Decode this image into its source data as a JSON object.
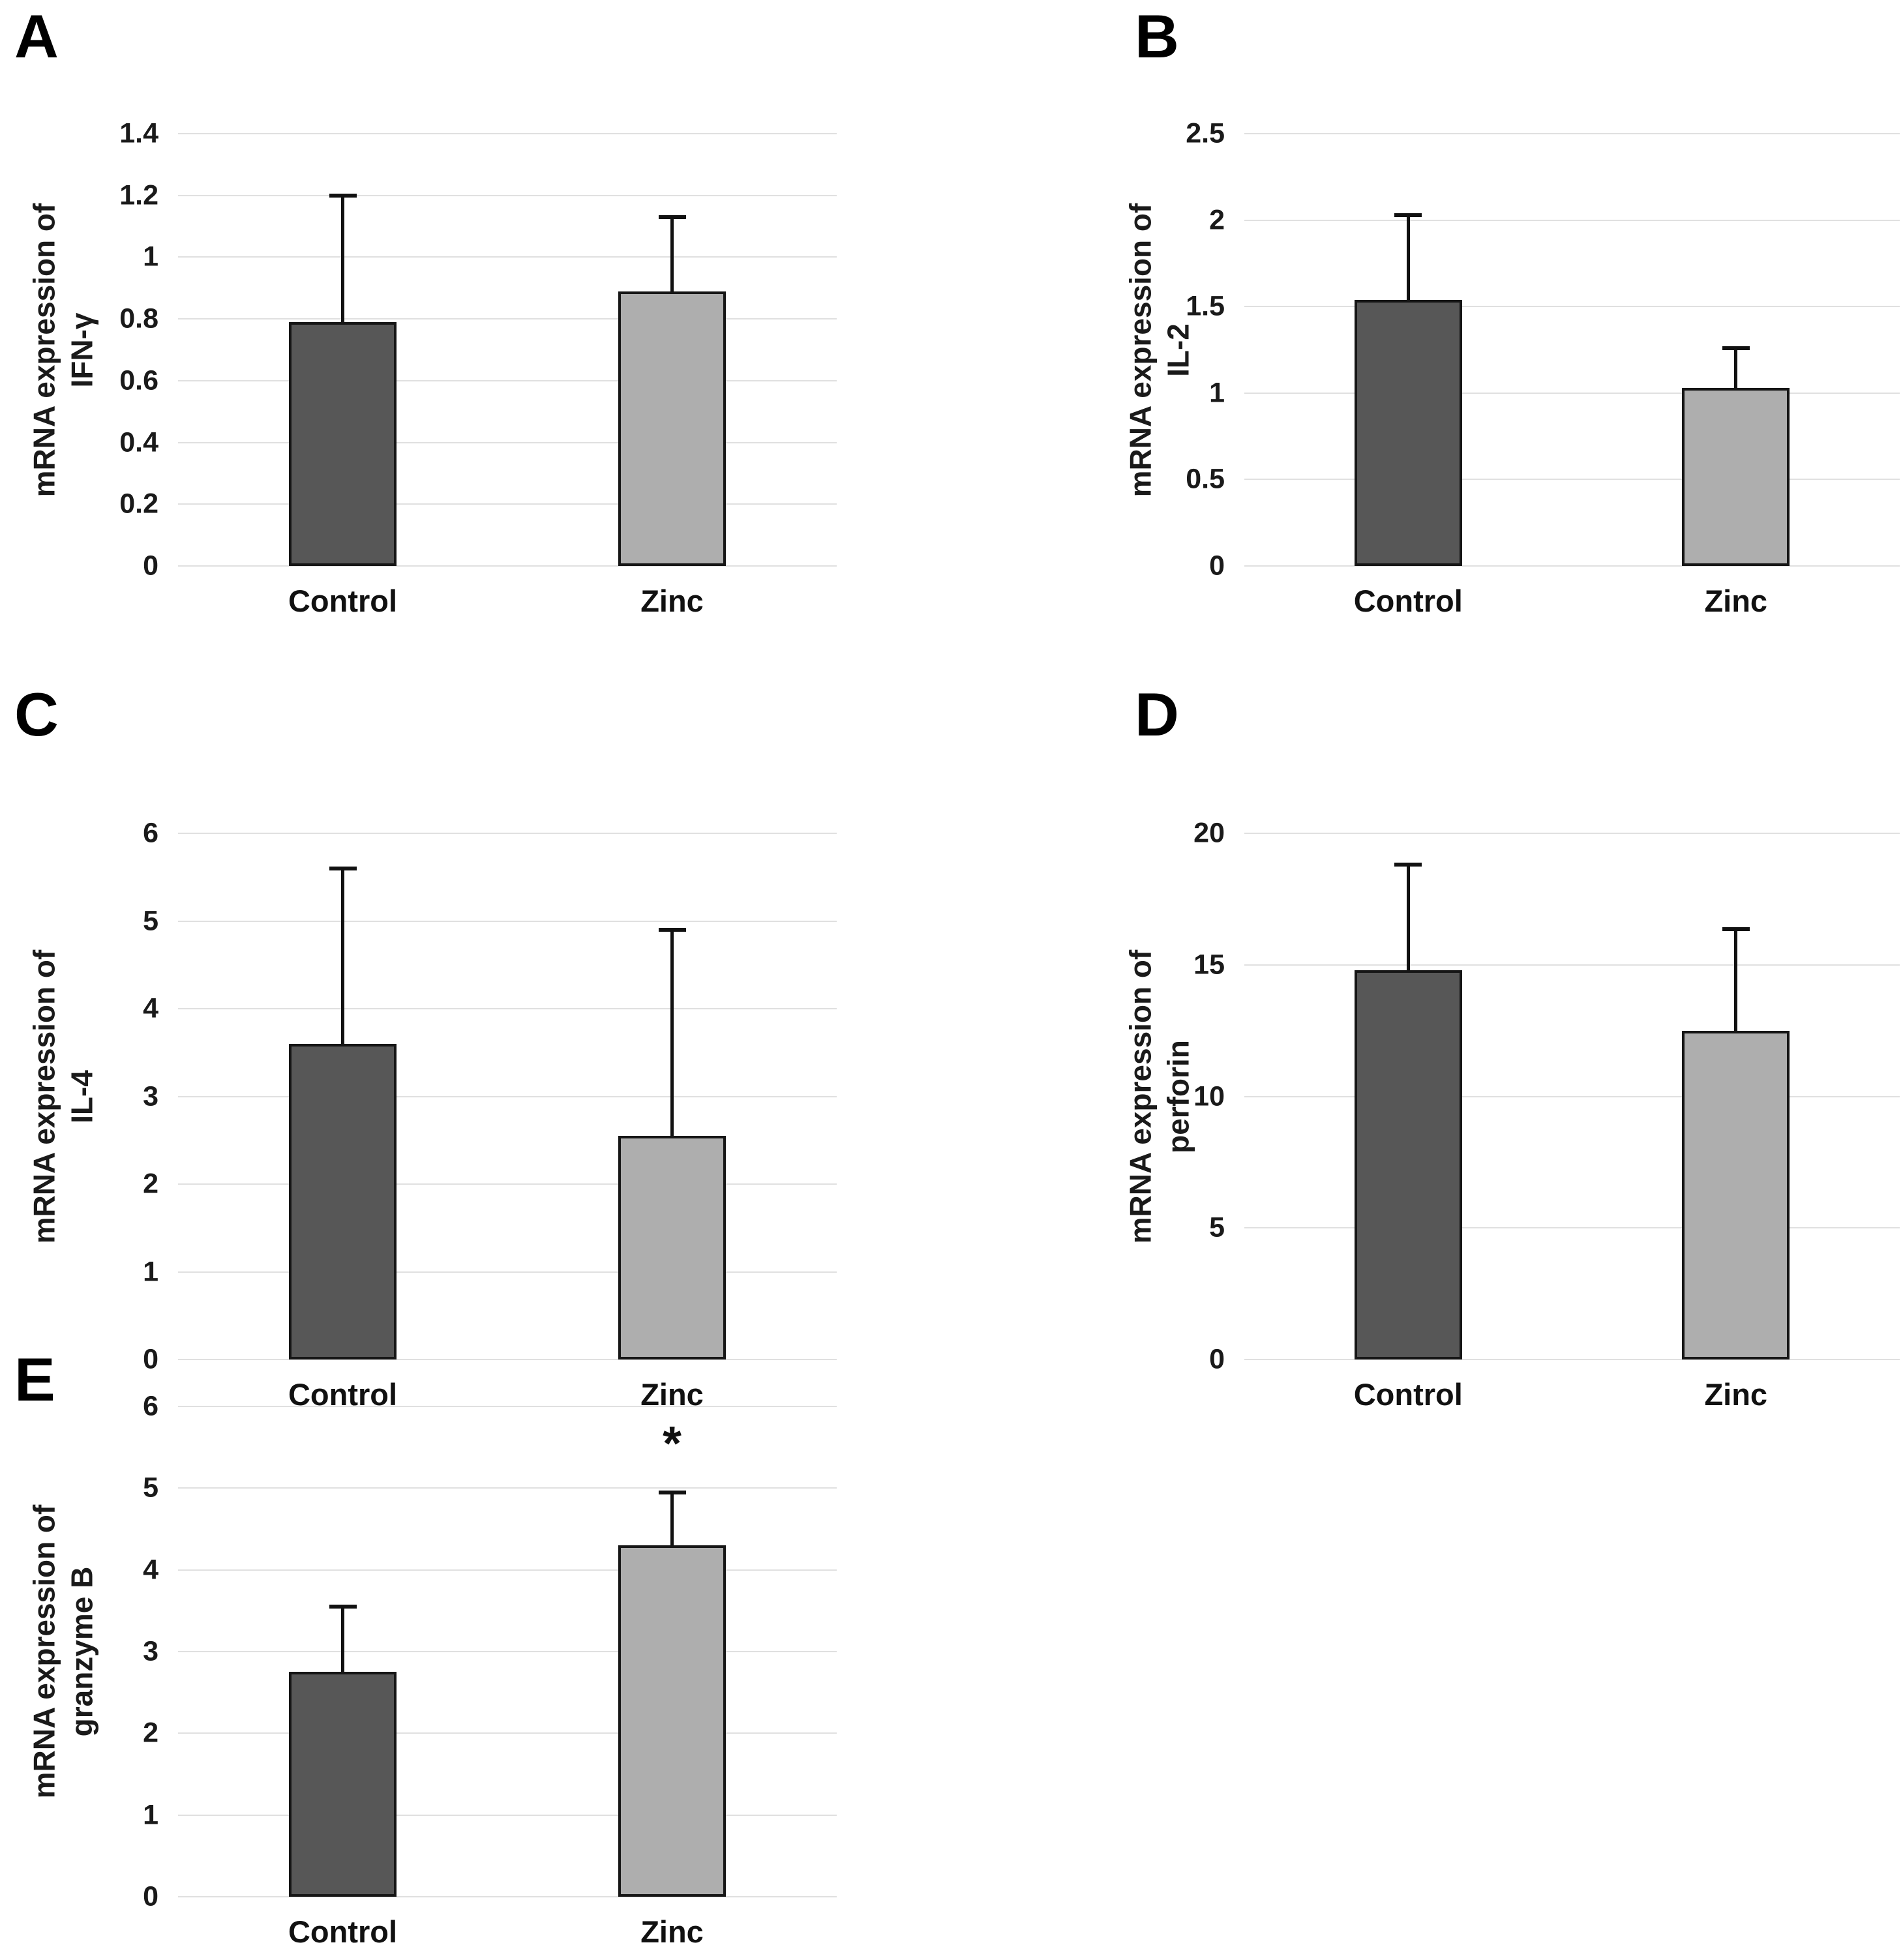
{
  "figure": {
    "panel_letters": [
      "A",
      "B",
      "C",
      "D",
      "E"
    ],
    "group_labels": [
      "Control",
      "Zinc"
    ],
    "significance_marker": "*"
  },
  "colors": {
    "background": "#ffffff",
    "control_bar": "#575757",
    "zinc_bar": "#aeaeae",
    "bar_border": "#161616",
    "error_bar": "#111111",
    "gridline": "#e0e0e0",
    "text": "#1a1a1a"
  },
  "chart_data": [
    {
      "type": "bar",
      "panel": "A",
      "title": "",
      "xlabel": "",
      "ylabel": "mRNA expression of IFN-γ",
      "ylabel_lines": [
        "mRNA expression of",
        "IFN-γ"
      ],
      "categories": [
        "Control",
        "Zinc"
      ],
      "values": [
        0.79,
        0.89
      ],
      "errors_plus": [
        0.41,
        0.24
      ],
      "ylim": [
        0,
        1.4
      ],
      "yticks": [
        0,
        0.2,
        0.4,
        0.6,
        0.8,
        1,
        1.2,
        1.4
      ],
      "ytick_labels": [
        "0",
        "0.2",
        "0.4",
        "0.6",
        "0.8",
        "1",
        "1.2",
        "1.4"
      ],
      "significance": [
        "",
        ""
      ],
      "grid": true,
      "legend": null
    },
    {
      "type": "bar",
      "panel": "B",
      "title": "",
      "xlabel": "",
      "ylabel": "mRNA expression of IL-2",
      "ylabel_lines": [
        "mRNA expression of",
        "IL-2"
      ],
      "categories": [
        "Control",
        "Zinc"
      ],
      "values": [
        1.54,
        1.03
      ],
      "errors_plus": [
        0.49,
        0.23
      ],
      "ylim": [
        0,
        2.5
      ],
      "yticks": [
        0,
        0.5,
        1,
        1.5,
        2,
        2.5
      ],
      "ytick_labels": [
        "0",
        "0.5",
        "1",
        "1.5",
        "2",
        "2.5"
      ],
      "significance": [
        "",
        ""
      ],
      "grid": true,
      "legend": null
    },
    {
      "type": "bar",
      "panel": "C",
      "title": "",
      "xlabel": "",
      "ylabel": "mRNA expression of IL-4",
      "ylabel_lines": [
        "mRNA expression of",
        "IL-4"
      ],
      "categories": [
        "Control",
        "Zinc"
      ],
      "values": [
        3.6,
        2.55
      ],
      "errors_plus": [
        2.0,
        2.35
      ],
      "ylim": [
        0,
        6
      ],
      "yticks": [
        0,
        1,
        2,
        3,
        4,
        5,
        6
      ],
      "ytick_labels": [
        "0",
        "1",
        "2",
        "3",
        "4",
        "5",
        "6"
      ],
      "significance": [
        "",
        ""
      ],
      "grid": true,
      "legend": null
    },
    {
      "type": "bar",
      "panel": "D",
      "title": "",
      "xlabel": "",
      "ylabel": "mRNA expression of perforin",
      "ylabel_lines": [
        "mRNA expression of",
        "perforin"
      ],
      "categories": [
        "Control",
        "Zinc"
      ],
      "values": [
        14.8,
        12.5
      ],
      "errors_plus": [
        4.0,
        3.85
      ],
      "ylim": [
        0,
        20
      ],
      "yticks": [
        0,
        5,
        10,
        15,
        20
      ],
      "ytick_labels": [
        "0",
        "5",
        "10",
        "15",
        "20"
      ],
      "significance": [
        "",
        ""
      ],
      "grid": true,
      "legend": null
    },
    {
      "type": "bar",
      "panel": "E",
      "title": "",
      "xlabel": "",
      "ylabel": "mRNA expression of granzyme B",
      "ylabel_lines": [
        "mRNA expression of",
        "granzyme B"
      ],
      "categories": [
        "Control",
        "Zinc"
      ],
      "values": [
        2.75,
        4.3
      ],
      "errors_plus": [
        0.8,
        0.65
      ],
      "ylim": [
        0,
        6
      ],
      "yticks": [
        0,
        1,
        2,
        3,
        4,
        5,
        6
      ],
      "ytick_labels": [
        "0",
        "1",
        "2",
        "3",
        "4",
        "5",
        "6"
      ],
      "significance": [
        "",
        "*"
      ],
      "grid": true,
      "legend": null
    }
  ]
}
